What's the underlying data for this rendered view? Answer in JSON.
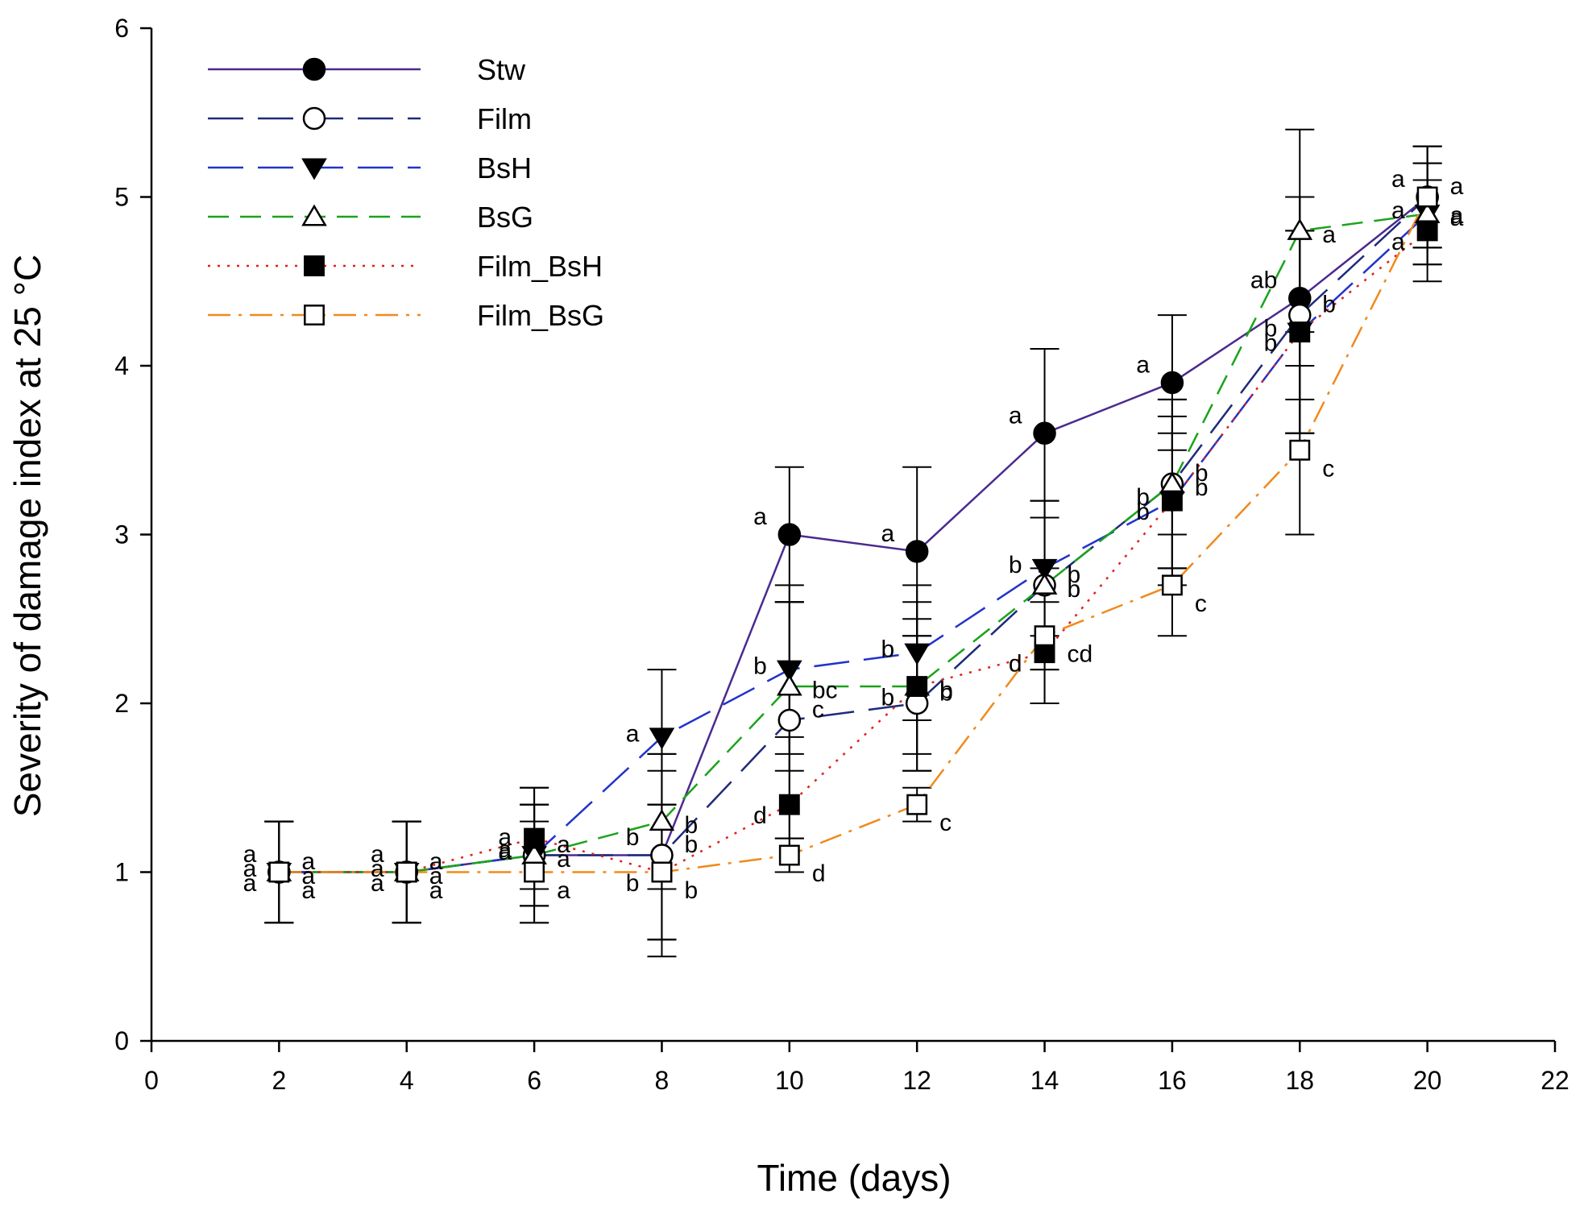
{
  "chart_data": {
    "type": "line",
    "title": "",
    "xlabel": "Time (days)",
    "ylabel": "Severity of damage index at 25 °C",
    "xlim": [
      0,
      22
    ],
    "ylim": [
      0,
      6
    ],
    "xticks": [
      "0",
      "2",
      "4",
      "6",
      "8",
      "10",
      "12",
      "14",
      "16",
      "18",
      "20",
      "22"
    ],
    "yticks": [
      "0",
      "1",
      "2",
      "3",
      "4",
      "5",
      "6"
    ],
    "grid": false,
    "legend_position": "top-left",
    "x": [
      2,
      4,
      6,
      8,
      10,
      12,
      14,
      16,
      18,
      20
    ],
    "series": [
      {
        "name": "Stw",
        "color": "#4b2a8f",
        "dash": "solid",
        "marker": "filled-circle",
        "values": [
          1.0,
          1.0,
          1.1,
          1.1,
          3.0,
          2.9,
          3.6,
          3.9,
          4.4,
          5.0
        ],
        "error": [
          0.3,
          0.3,
          0.3,
          0.6,
          0.4,
          0.5,
          0.5,
          0.4,
          0.6,
          0.3
        ],
        "letters": [
          "a",
          "a",
          "a",
          "b",
          "a",
          "a",
          "a",
          "a",
          "ab",
          "a"
        ]
      },
      {
        "name": "Film",
        "color": "#1f2a7a",
        "dash": "long-dash",
        "marker": "open-circle",
        "values": [
          1.0,
          1.0,
          1.1,
          1.1,
          1.9,
          2.0,
          2.7,
          3.3,
          4.3,
          5.0
        ],
        "error": [
          0.3,
          0.3,
          0.4,
          0.5,
          0.7,
          0.4,
          0.5,
          0.5,
          0.7,
          0.3
        ],
        "letters": [
          "a",
          "a",
          "a",
          "b",
          "c",
          "b",
          "b",
          "b",
          "b",
          "a"
        ]
      },
      {
        "name": "BsH",
        "color": "#2233cc",
        "dash": "long-dash",
        "marker": "filled-triangle-down",
        "values": [
          1.0,
          1.0,
          1.1,
          1.8,
          2.2,
          2.3,
          2.8,
          3.2,
          4.2,
          4.9
        ],
        "error": [
          0.3,
          0.3,
          0.3,
          0.4,
          0.5,
          0.4,
          0.4,
          0.5,
          0.6,
          0.3
        ],
        "letters": [
          "a",
          "a",
          "a",
          "a",
          "b",
          "b",
          "b",
          "b",
          "b",
          "a"
        ]
      },
      {
        "name": "BsG",
        "color": "#1aa31a",
        "dash": "dash",
        "marker": "open-triangle-up",
        "values": [
          1.0,
          1.0,
          1.1,
          1.3,
          2.1,
          2.1,
          2.7,
          3.3,
          4.8,
          4.9
        ],
        "error": [
          0.3,
          0.3,
          0.3,
          0.4,
          0.5,
          0.4,
          0.5,
          0.5,
          0.6,
          0.3
        ],
        "letters": [
          "a",
          "a",
          "a",
          "b",
          "bc",
          "b",
          "b",
          "b",
          "a",
          "a"
        ]
      },
      {
        "name": "Film_BsH",
        "color": "#e0201a",
        "dash": "dotted",
        "marker": "filled-square",
        "values": [
          1.0,
          1.0,
          1.2,
          1.0,
          1.4,
          2.1,
          2.3,
          3.2,
          4.2,
          4.8
        ],
        "error": [
          0.3,
          0.3,
          0.3,
          0.4,
          0.4,
          0.5,
          0.3,
          0.4,
          0.6,
          0.3
        ],
        "letters": [
          "a",
          "a",
          "a",
          "b",
          "d",
          "b",
          "d",
          "b",
          "b",
          "a"
        ]
      },
      {
        "name": "Film_BsG",
        "color": "#f08a1c",
        "dash": "dash-dot",
        "marker": "open-square",
        "values": [
          1.0,
          1.0,
          1.0,
          1.0,
          1.1,
          1.4,
          2.4,
          2.7,
          3.5,
          5.0
        ],
        "error": [
          0.3,
          0.3,
          0.3,
          0.4,
          0.1,
          0.1,
          0.4,
          0.3,
          0.5,
          0.3
        ],
        "letters": [
          "a",
          "a",
          "a",
          "b",
          "d",
          "c",
          "cd",
          "c",
          "c",
          "a"
        ]
      }
    ]
  }
}
